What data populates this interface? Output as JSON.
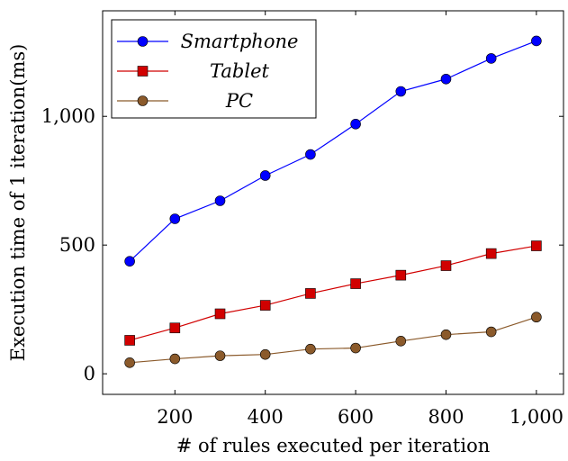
{
  "chart_data": {
    "type": "line",
    "title": "",
    "xlabel": "# of rules executed per iteration",
    "ylabel": "Execution time of 1 iteration(ms)",
    "xlim": [
      40,
      1060
    ],
    "ylim": [
      -80,
      1410
    ],
    "xticks": [
      200,
      400,
      600,
      800,
      1000
    ],
    "xtick_labels": [
      "200",
      "400",
      "600",
      "800",
      "1,000"
    ],
    "yticks": [
      0,
      500,
      1000
    ],
    "ytick_labels": [
      "0",
      "500",
      "1,000"
    ],
    "grid": false,
    "legend_position": "top-left",
    "x": [
      100,
      200,
      300,
      400,
      500,
      600,
      700,
      800,
      900,
      1000
    ],
    "series": [
      {
        "name": "Smartphone",
        "color": "#0000ff",
        "marker": "circle",
        "values": [
          437,
          602,
          672,
          770,
          852,
          970,
          1097,
          1145,
          1225,
          1293
        ]
      },
      {
        "name": "Tablet",
        "color": "#d10000",
        "marker": "square",
        "values": [
          130,
          178,
          233,
          266,
          312,
          350,
          383,
          420,
          467,
          497
        ]
      },
      {
        "name": "PC",
        "color": "#8b5a2b",
        "marker": "circle",
        "values": [
          43,
          58,
          70,
          75,
          96,
          100,
          127,
          152,
          163,
          220
        ]
      }
    ]
  }
}
